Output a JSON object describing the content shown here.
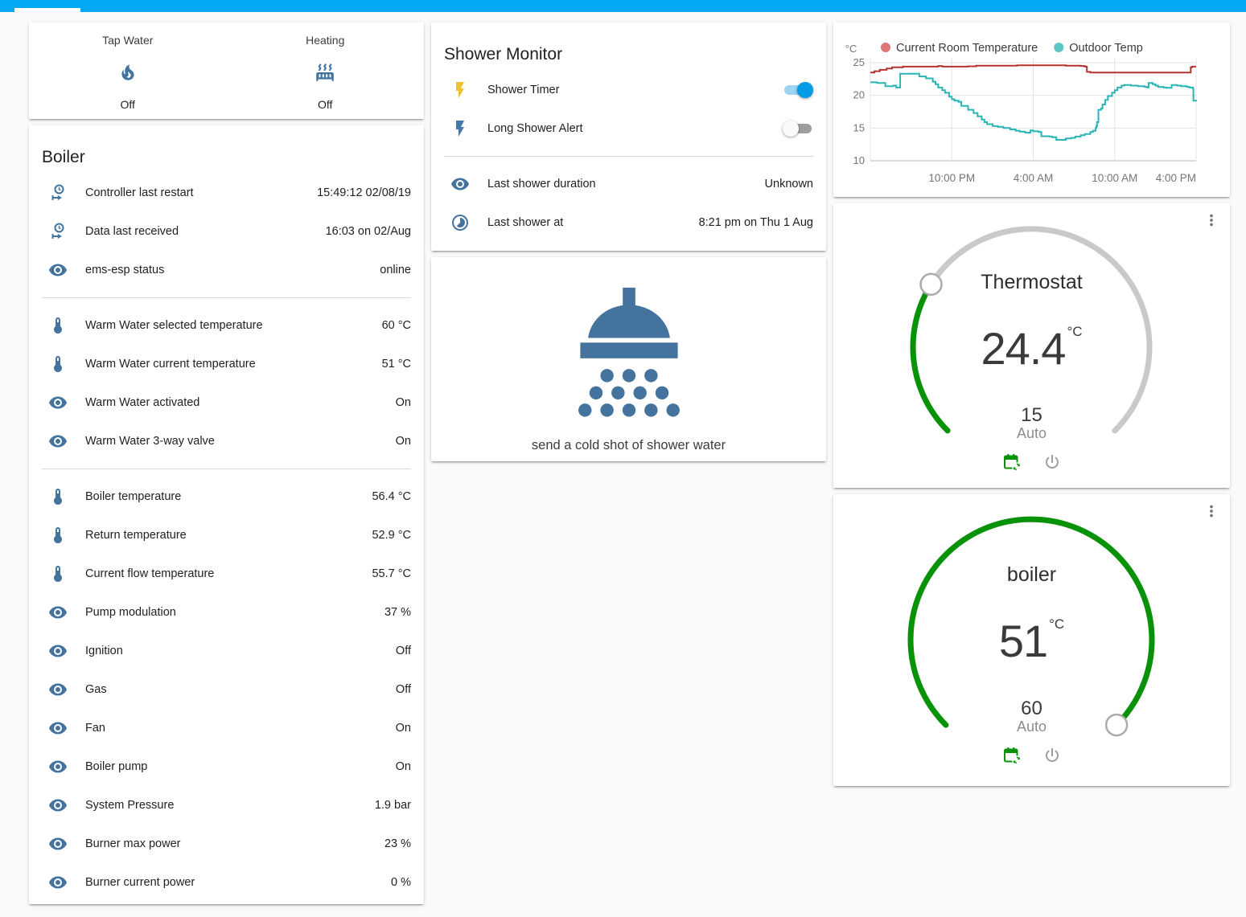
{
  "header": {
    "accent_color": "#03a9f4"
  },
  "colors": {
    "icon_blue": "#44739e",
    "toggle_on_knob": "#039be5",
    "toggle_on_track": "#9fd3f2",
    "dial_green": "#089208",
    "dial_gray": "#c9c9c9",
    "flash_yellow": "#f2c12e",
    "flash_blue": "#4579ac"
  },
  "tap_heating_card": {
    "items": [
      {
        "label": "Tap Water",
        "icon": "fire",
        "state": "Off"
      },
      {
        "label": "Heating",
        "icon": "radiator",
        "state": "Off"
      }
    ]
  },
  "boiler_card": {
    "title": "Boiler",
    "sections": [
      {
        "rows": [
          {
            "icon": "clock-start",
            "label": "Controller last restart",
            "value": "15:49:12 02/08/19"
          },
          {
            "icon": "clock-start",
            "label": "Data last received",
            "value": "16:03 on 02/Aug"
          },
          {
            "icon": "eye",
            "label": "ems-esp status",
            "value": "online"
          }
        ]
      },
      {
        "rows": [
          {
            "icon": "thermometer",
            "label": "Warm Water selected temperature",
            "value": "60 °C"
          },
          {
            "icon": "thermometer",
            "label": "Warm Water current temperature",
            "value": "51 °C"
          },
          {
            "icon": "eye",
            "label": "Warm Water activated",
            "value": "On"
          },
          {
            "icon": "eye",
            "label": "Warm Water 3-way valve",
            "value": "On"
          }
        ]
      },
      {
        "rows": [
          {
            "icon": "thermometer",
            "label": "Boiler temperature",
            "value": "56.4 °C"
          },
          {
            "icon": "thermometer",
            "label": "Return temperature",
            "value": "52.9 °C"
          },
          {
            "icon": "thermometer",
            "label": "Current flow temperature",
            "value": "55.7 °C"
          },
          {
            "icon": "eye",
            "label": "Pump modulation",
            "value": "37 %"
          },
          {
            "icon": "eye",
            "label": "Ignition",
            "value": "Off"
          },
          {
            "icon": "eye",
            "label": "Gas",
            "value": "Off"
          },
          {
            "icon": "eye",
            "label": "Fan",
            "value": "On"
          },
          {
            "icon": "eye",
            "label": "Boiler pump",
            "value": "On"
          },
          {
            "icon": "eye",
            "label": "System Pressure",
            "value": "1.9 bar"
          },
          {
            "icon": "eye",
            "label": "Burner max power",
            "value": "23 %"
          },
          {
            "icon": "eye",
            "label": "Burner current power",
            "value": "0 %"
          }
        ]
      }
    ]
  },
  "shower_monitor": {
    "title": "Shower Monitor",
    "toggles": [
      {
        "icon": "flash",
        "icon_color": "#f2c12e",
        "label": "Shower Timer",
        "on": true
      },
      {
        "icon": "flash",
        "icon_color": "#4579ac",
        "label": "Long Shower Alert",
        "on": false
      }
    ],
    "rows": [
      {
        "icon": "eye",
        "label": "Last shower duration",
        "value": "Unknown"
      },
      {
        "icon": "timelapse",
        "label": "Last shower at",
        "value": "8:21 pm on Thu 1 Aug"
      }
    ]
  },
  "shower_action": {
    "label": "send a cold shot of shower water"
  },
  "chart_data": {
    "type": "line",
    "interpolation": "step-after",
    "unit": "°C",
    "grid": true,
    "legend_position": "top",
    "x_axis": {
      "range_hours": [
        0,
        24
      ],
      "ticks": [
        {
          "hours": 6,
          "label": "10:00 PM"
        },
        {
          "hours": 12,
          "label": "4:00 AM"
        },
        {
          "hours": 18,
          "label": "10:00 AM"
        },
        {
          "hours": 24,
          "label": "4:00 PM"
        }
      ]
    },
    "y_axis": {
      "ticks": [
        10,
        15,
        20,
        25
      ],
      "range": [
        9.3,
        25.9
      ]
    },
    "series": [
      {
        "name": "Current Room Temperature",
        "dot_color": "#df7676",
        "line_color": "#b5342e",
        "points": [
          [
            0,
            23.5
          ],
          [
            0.3,
            23.7
          ],
          [
            0.7,
            23.9
          ],
          [
            1.2,
            24.1
          ],
          [
            1.6,
            24.3
          ],
          [
            2.4,
            24.4
          ],
          [
            4.8,
            24.4
          ],
          [
            5.0,
            24.5
          ],
          [
            5.3,
            24.4
          ],
          [
            7.2,
            24.45
          ],
          [
            7.8,
            24.55
          ],
          [
            10.8,
            24.6
          ],
          [
            13.2,
            24.6
          ],
          [
            14.4,
            24.55
          ],
          [
            15.5,
            24.5
          ],
          [
            15.8,
            24.4
          ],
          [
            15.95,
            23.6
          ],
          [
            16.2,
            23.5
          ],
          [
            23.5,
            23.5
          ],
          [
            23.6,
            24.3
          ],
          [
            23.7,
            24.4
          ],
          [
            24,
            24.4
          ]
        ]
      },
      {
        "name": "Outdoor Temp",
        "dot_color": "#5bc6c5",
        "line_color": "#2ab5b5",
        "points": [
          [
            0,
            22.0
          ],
          [
            0.5,
            21.9
          ],
          [
            1.1,
            21.4
          ],
          [
            1.7,
            21.5
          ],
          [
            1.9,
            21.2
          ],
          [
            2.2,
            23.3
          ],
          [
            3.2,
            23.3
          ],
          [
            3.6,
            22.9
          ],
          [
            4.1,
            22.6
          ],
          [
            4.6,
            22.1
          ],
          [
            4.8,
            21.7
          ],
          [
            5.0,
            21.2
          ],
          [
            5.3,
            20.8
          ],
          [
            5.5,
            20.4
          ],
          [
            5.8,
            19.8
          ],
          [
            6.0,
            19.4
          ],
          [
            6.2,
            19.2
          ],
          [
            6.5,
            19.0
          ],
          [
            6.7,
            18.4
          ],
          [
            7.2,
            17.8
          ],
          [
            7.6,
            17.3
          ],
          [
            7.9,
            16.8
          ],
          [
            8.2,
            16.3
          ],
          [
            8.4,
            15.9
          ],
          [
            8.6,
            15.6
          ],
          [
            9.0,
            15.3
          ],
          [
            9.4,
            15.2
          ],
          [
            9.8,
            15.0
          ],
          [
            10.3,
            14.8
          ],
          [
            10.7,
            14.6
          ],
          [
            11.0,
            14.45
          ],
          [
            11.4,
            14.3
          ],
          [
            11.8,
            14.65
          ],
          [
            12.0,
            14.5
          ],
          [
            12.4,
            14.4
          ],
          [
            12.6,
            13.75
          ],
          [
            13.2,
            13.7
          ],
          [
            13.4,
            13.6
          ],
          [
            13.7,
            13.2
          ],
          [
            14.2,
            13.2
          ],
          [
            14.4,
            13.4
          ],
          [
            14.8,
            13.5
          ],
          [
            15.1,
            13.7
          ],
          [
            15.5,
            13.9
          ],
          [
            15.8,
            14.1
          ],
          [
            16.2,
            14.4
          ],
          [
            16.4,
            14.6
          ],
          [
            16.6,
            15.0
          ],
          [
            16.65,
            15.3
          ],
          [
            16.7,
            15.9
          ],
          [
            16.8,
            17.8
          ],
          [
            17.0,
            18.0
          ],
          [
            17.1,
            18.6
          ],
          [
            17.3,
            19.3
          ],
          [
            17.5,
            19.9
          ],
          [
            17.8,
            20.4
          ],
          [
            18.0,
            20.8
          ],
          [
            18.2,
            21.2
          ],
          [
            18.5,
            21.5
          ],
          [
            18.7,
            21.6
          ],
          [
            19.2,
            21.5
          ],
          [
            19.7,
            21.4
          ],
          [
            20.2,
            21.3
          ],
          [
            20.4,
            21.2
          ],
          [
            20.5,
            21.9
          ],
          [
            20.8,
            21.7
          ],
          [
            21.0,
            21.5
          ],
          [
            21.2,
            21.3
          ],
          [
            21.6,
            21.2
          ],
          [
            21.8,
            21.15
          ],
          [
            22.2,
            21.6
          ],
          [
            22.6,
            21.5
          ],
          [
            22.9,
            21.4
          ],
          [
            23.3,
            21.3
          ],
          [
            23.5,
            21.2
          ],
          [
            23.75,
            21.1
          ],
          [
            23.8,
            19.2
          ],
          [
            24,
            19.1
          ]
        ]
      }
    ]
  },
  "thermostat_card": {
    "title": "Thermostat",
    "current": "24.4",
    "unit": "°C",
    "target": "15",
    "mode": "Auto",
    "dial": {
      "min": 7,
      "max": 35,
      "value": 15
    }
  },
  "boiler_dial_card": {
    "title": "boiler",
    "current": "51",
    "unit": "°C",
    "target": "60",
    "mode": "Auto",
    "dial": {
      "min": 0,
      "max": 60,
      "value": 60
    }
  }
}
